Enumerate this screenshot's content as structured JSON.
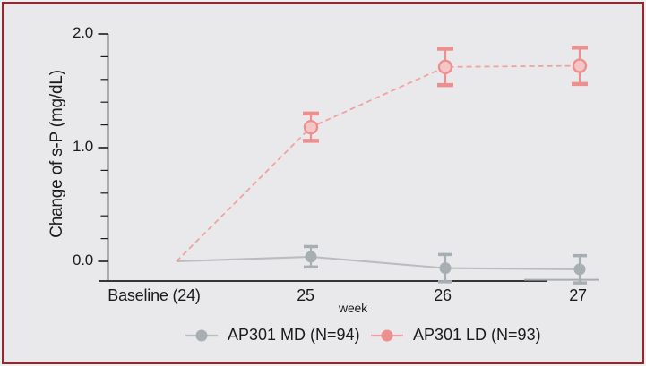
{
  "figure": {
    "border_color": "#8d2b33",
    "background_color": "#e9e9eb",
    "outer_background_color": "#f1eeef",
    "axis_color": "#1b1b1d"
  },
  "chart_data": {
    "type": "line",
    "title": "",
    "xlabel": "week",
    "ylabel": "Change of s-P (mg/dL)",
    "categories": [
      "Baseline (24)",
      "25",
      "26",
      "27"
    ],
    "yticks": [
      2.0,
      1.0,
      0.0
    ],
    "ytick_labels": [
      "2.0",
      "1.0",
      "0.0"
    ],
    "minor_tick_step": 0.2,
    "ylim_drawn": [
      0.0,
      2.0
    ],
    "grid": false,
    "legend_position": "bottom-center",
    "series": [
      {
        "name": "AP301 MD (N=94)",
        "values": [
          0.0,
          0.04,
          -0.06,
          -0.07
        ],
        "errors": [
          0.0,
          0.09,
          0.12,
          0.12
        ],
        "line_style": "solid",
        "line_color": "#b9bdc0",
        "marker_color": "#a8afb3",
        "marker_fill": "#a8afb3"
      },
      {
        "name": "AP301 LD (N=93)",
        "values": [
          0.0,
          1.18,
          1.71,
          1.72
        ],
        "errors": [
          0.0,
          0.12,
          0.16,
          0.16
        ],
        "line_style": "dashed",
        "line_color": "#f0a2a2",
        "marker_color": "#ee8f8f",
        "marker_fill": "#f6c6c6"
      }
    ]
  }
}
